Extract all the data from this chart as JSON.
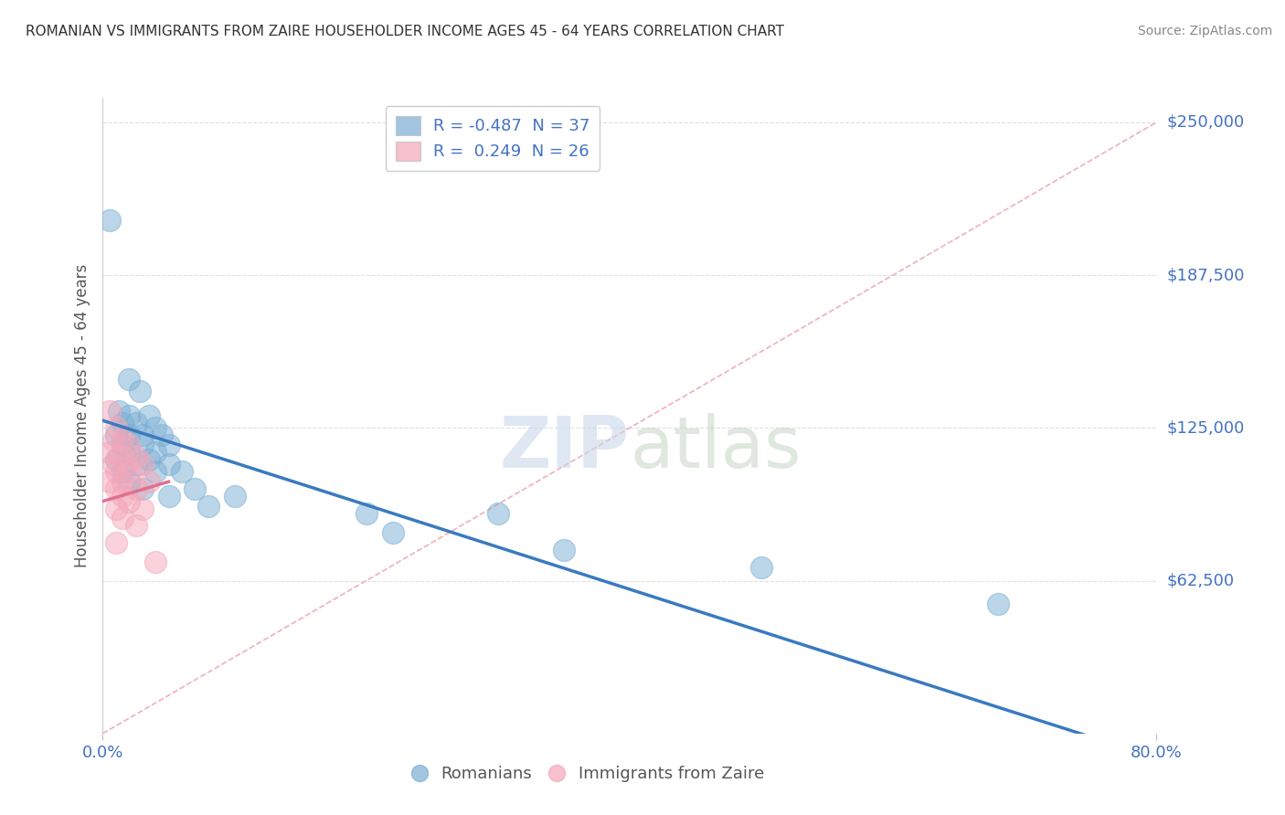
{
  "title": "ROMANIAN VS IMMIGRANTS FROM ZAIRE HOUSEHOLDER INCOME AGES 45 - 64 YEARS CORRELATION CHART",
  "source": "Source: ZipAtlas.com",
  "xlabel_bottom": [
    "0.0%",
    "80.0%"
  ],
  "ylabel": "Householder Income Ages 45 - 64 years",
  "ytick_labels": [
    "$250,000",
    "$187,500",
    "$125,000",
    "$62,500"
  ],
  "ytick_values": [
    250000,
    187500,
    125000,
    62500
  ],
  "legend_items": [
    {
      "label": "R = -0.487  N = 37",
      "color": "#aec6e8"
    },
    {
      "label": "R =  0.249  N = 26",
      "color": "#f4a7b9"
    }
  ],
  "legend_bottom": [
    "Romanians",
    "Immigrants from Zaire"
  ],
  "blue_scatter": [
    [
      0.5,
      210000
    ],
    [
      2.0,
      145000
    ],
    [
      2.8,
      140000
    ],
    [
      1.2,
      132000
    ],
    [
      2.0,
      130000
    ],
    [
      3.5,
      130000
    ],
    [
      1.5,
      127000
    ],
    [
      2.5,
      127000
    ],
    [
      4.0,
      125000
    ],
    [
      1.0,
      122000
    ],
    [
      2.0,
      122000
    ],
    [
      3.0,
      122000
    ],
    [
      4.5,
      122000
    ],
    [
      1.5,
      118000
    ],
    [
      3.0,
      118000
    ],
    [
      5.0,
      118000
    ],
    [
      2.0,
      115000
    ],
    [
      4.0,
      115000
    ],
    [
      1.0,
      112000
    ],
    [
      3.5,
      112000
    ],
    [
      2.5,
      110000
    ],
    [
      5.0,
      110000
    ],
    [
      1.5,
      107000
    ],
    [
      4.0,
      107000
    ],
    [
      6.0,
      107000
    ],
    [
      2.0,
      103000
    ],
    [
      3.0,
      100000
    ],
    [
      7.0,
      100000
    ],
    [
      5.0,
      97000
    ],
    [
      10.0,
      97000
    ],
    [
      8.0,
      93000
    ],
    [
      20.0,
      90000
    ],
    [
      30.0,
      90000
    ],
    [
      22.0,
      82000
    ],
    [
      35.0,
      75000
    ],
    [
      50.0,
      68000
    ],
    [
      68.0,
      53000
    ]
  ],
  "pink_scatter": [
    [
      0.5,
      132000
    ],
    [
      1.0,
      125000
    ],
    [
      0.8,
      120000
    ],
    [
      1.5,
      120000
    ],
    [
      2.0,
      118000
    ],
    [
      0.5,
      115000
    ],
    [
      1.2,
      113000
    ],
    [
      2.5,
      113000
    ],
    [
      0.8,
      110000
    ],
    [
      1.8,
      110000
    ],
    [
      3.0,
      110000
    ],
    [
      1.0,
      107000
    ],
    [
      2.0,
      107000
    ],
    [
      0.5,
      103000
    ],
    [
      1.5,
      103000
    ],
    [
      3.5,
      103000
    ],
    [
      1.0,
      100000
    ],
    [
      2.5,
      100000
    ],
    [
      1.5,
      97000
    ],
    [
      2.0,
      95000
    ],
    [
      1.0,
      92000
    ],
    [
      3.0,
      92000
    ],
    [
      1.5,
      88000
    ],
    [
      2.5,
      85000
    ],
    [
      1.0,
      78000
    ],
    [
      4.0,
      70000
    ]
  ],
  "blue_line": [
    [
      0,
      128000
    ],
    [
      80,
      -10000
    ]
  ],
  "pink_line": [
    [
      0,
      95000
    ],
    [
      5,
      103000
    ]
  ],
  "diag_line": [
    [
      0,
      0
    ],
    [
      80,
      250000
    ]
  ],
  "background_color": "#ffffff",
  "plot_bg_color": "#ffffff",
  "grid_color": "#e0e0e0",
  "blue_color": "#7bafd4",
  "pink_color": "#f4a7b9",
  "blue_line_color": "#3a7abf",
  "pink_line_color": "#e07090",
  "diag_line_color": "#f0b0b8",
  "title_color": "#333333",
  "axis_label_color": "#555555",
  "tick_label_color": "#4472c4",
  "source_color": "#888888",
  "xlim": [
    0,
    80
  ],
  "ylim": [
    0,
    260000
  ]
}
